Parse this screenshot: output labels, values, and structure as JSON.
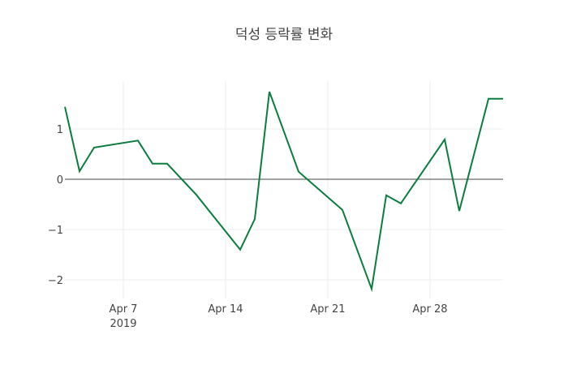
{
  "chart_data": {
    "type": "line",
    "title": "덕성 등락률 변화",
    "xlabel": "",
    "ylabel": "",
    "x": [
      "2019-04-03",
      "2019-04-04",
      "2019-04-05",
      "2019-04-08",
      "2019-04-09",
      "2019-04-10",
      "2019-04-12",
      "2019-04-15",
      "2019-04-16",
      "2019-04-17",
      "2019-04-19",
      "2019-04-22",
      "2019-04-24",
      "2019-04-25",
      "2019-04-26",
      "2019-04-29",
      "2019-04-30",
      "2019-05-02",
      "2019-05-03"
    ],
    "series": [
      {
        "name": "등락률",
        "color": "#0a7d3e",
        "values": [
          1.44,
          0.16,
          0.63,
          0.77,
          0.31,
          0.31,
          -0.31,
          -1.4,
          -0.79,
          1.74,
          0.15,
          -0.61,
          -2.18,
          -0.32,
          -0.48,
          0.79,
          -0.63,
          1.6,
          1.6
        ]
      }
    ],
    "x_ticks": [
      {
        "date": "2019-04-07",
        "label": "Apr 7",
        "sublabel": "2019"
      },
      {
        "date": "2019-04-14",
        "label": "Apr 14",
        "sublabel": ""
      },
      {
        "date": "2019-04-21",
        "label": "Apr 21",
        "sublabel": ""
      },
      {
        "date": "2019-04-28",
        "label": "Apr 28",
        "sublabel": ""
      }
    ],
    "y_ticks": [
      {
        "value": 1,
        "label": "1"
      },
      {
        "value": 0,
        "label": "0"
      },
      {
        "value": -1,
        "label": "−1"
      },
      {
        "value": -2,
        "label": "−2"
      }
    ],
    "xlim": [
      "2019-04-03",
      "2019-05-03"
    ],
    "ylim": [
      -2.3,
      1.95
    ],
    "grid": true,
    "zeroline": true,
    "legend": "none"
  }
}
